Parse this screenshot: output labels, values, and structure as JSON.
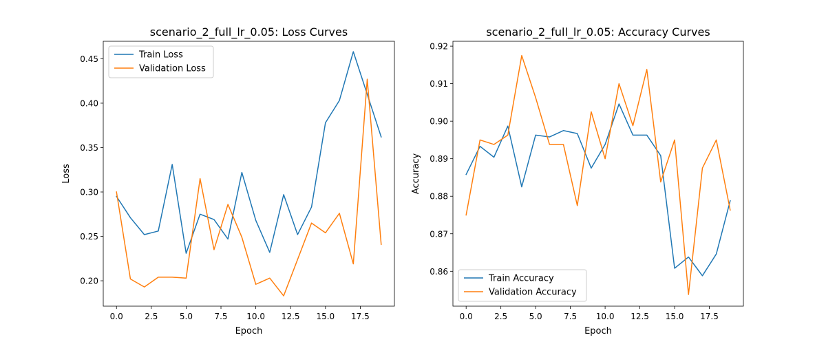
{
  "chart_data": [
    {
      "type": "line",
      "title": "scenario_2_full_lr_0.05: Loss Curves",
      "xlabel": "Epoch",
      "ylabel": "Loss",
      "x": [
        0,
        1,
        2,
        3,
        4,
        5,
        6,
        7,
        8,
        9,
        10,
        11,
        12,
        13,
        14,
        15,
        16,
        17,
        18,
        19
      ],
      "xlim": [
        -0.95,
        19.95
      ],
      "ylim": [
        0.1714,
        0.4697
      ],
      "xticks": [
        "0.0",
        "2.5",
        "5.0",
        "7.5",
        "10.0",
        "12.5",
        "15.0",
        "17.5"
      ],
      "xtick_values": [
        0,
        2.5,
        5,
        7.5,
        10,
        12.5,
        15,
        17.5
      ],
      "yticks": [
        "0.20",
        "0.25",
        "0.30",
        "0.35",
        "0.40",
        "0.45"
      ],
      "ytick_values": [
        0.2,
        0.25,
        0.3,
        0.35,
        0.4,
        0.45
      ],
      "legend_position": "upper left",
      "grid": false,
      "series": [
        {
          "name": "Train Loss",
          "color": "#1f77b4",
          "values": [
            0.295,
            0.271,
            0.252,
            0.256,
            0.331,
            0.231,
            0.275,
            0.269,
            0.247,
            0.322,
            0.268,
            0.232,
            0.297,
            0.252,
            0.283,
            0.378,
            0.403,
            0.458,
            0.41,
            0.362
          ]
        },
        {
          "name": "Validation Loss",
          "color": "#ff7f0e",
          "values": [
            0.3,
            0.202,
            0.193,
            0.204,
            0.204,
            0.203,
            0.315,
            0.235,
            0.286,
            0.249,
            0.196,
            0.203,
            0.183,
            0.224,
            0.265,
            0.254,
            0.276,
            0.219,
            0.427,
            0.241
          ]
        }
      ]
    },
    {
      "type": "line",
      "title": "scenario_2_full_lr_0.05: Accuracy Curves",
      "xlabel": "Epoch",
      "ylabel": "Accuracy",
      "x": [
        0,
        1,
        2,
        3,
        4,
        5,
        6,
        7,
        8,
        9,
        10,
        11,
        12,
        13,
        14,
        15,
        16,
        17,
        18,
        19
      ],
      "xlim": [
        -0.95,
        19.95
      ],
      "ylim": [
        0.8507,
        0.9213
      ],
      "xticks": [
        "0.0",
        "2.5",
        "5.0",
        "7.5",
        "10.0",
        "12.5",
        "15.0",
        "17.5"
      ],
      "xtick_values": [
        0,
        2.5,
        5,
        7.5,
        10,
        12.5,
        15,
        17.5
      ],
      "yticks": [
        "0.86",
        "0.87",
        "0.88",
        "0.89",
        "0.90",
        "0.91",
        "0.92"
      ],
      "ytick_values": [
        0.86,
        0.87,
        0.88,
        0.89,
        0.9,
        0.91,
        0.92
      ],
      "legend_position": "lower left",
      "grid": false,
      "series": [
        {
          "name": "Train Accuracy",
          "color": "#1f77b4",
          "values": [
            0.8858,
            0.8933,
            0.8904,
            0.8987,
            0.8825,
            0.8963,
            0.8958,
            0.8975,
            0.8967,
            0.8875,
            0.8938,
            0.9046,
            0.8963,
            0.8963,
            0.8908,
            0.8608,
            0.8638,
            0.8588,
            0.8646,
            0.8788
          ]
        },
        {
          "name": "Validation Accuracy",
          "color": "#ff7f0e",
          "values": [
            0.875,
            0.895,
            0.8938,
            0.8963,
            0.9175,
            0.9063,
            0.8938,
            0.8938,
            0.8775,
            0.9025,
            0.89,
            0.91,
            0.8988,
            0.9138,
            0.8838,
            0.895,
            0.8538,
            0.8875,
            0.895,
            0.8763
          ]
        }
      ]
    }
  ]
}
